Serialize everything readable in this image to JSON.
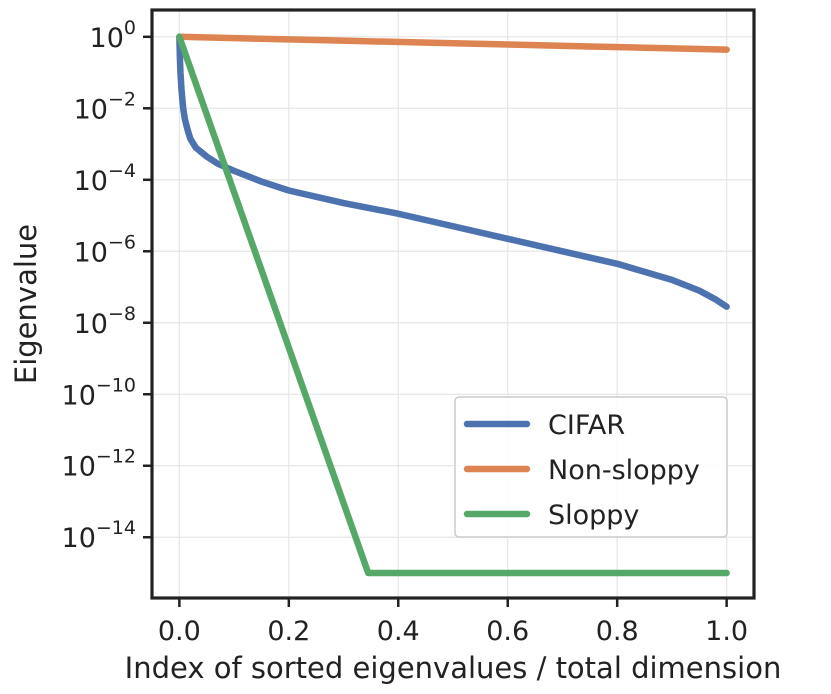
{
  "chart_data": {
    "type": "line",
    "title": "",
    "xlabel": "Index of sorted eigenvalues / total dimension",
    "ylabel": "Eigenvalue",
    "xlim": [
      -0.05,
      1.05
    ],
    "ylim_log10": [
      -15.7,
      0.75
    ],
    "yscale": "log",
    "grid": true,
    "legend_position": "lower-right",
    "x_ticks": [
      {
        "value": 0.0,
        "label": "0.0"
      },
      {
        "value": 0.2,
        "label": "0.2"
      },
      {
        "value": 0.4,
        "label": "0.4"
      },
      {
        "value": 0.6,
        "label": "0.6"
      },
      {
        "value": 0.8,
        "label": "0.8"
      },
      {
        "value": 1.0,
        "label": "1.0"
      }
    ],
    "y_ticks": [
      {
        "exp": 0,
        "base": "10",
        "power": "0"
      },
      {
        "exp": -2,
        "base": "10",
        "power": "−2"
      },
      {
        "exp": -4,
        "base": "10",
        "power": "−4"
      },
      {
        "exp": -6,
        "base": "10",
        "power": "−6"
      },
      {
        "exp": -8,
        "base": "10",
        "power": "−8"
      },
      {
        "exp": -10,
        "base": "10",
        "power": "−10"
      },
      {
        "exp": -12,
        "base": "10",
        "power": "−12"
      },
      {
        "exp": -14,
        "base": "10",
        "power": "−14"
      }
    ],
    "series": [
      {
        "name": "CIFAR",
        "color": "#4c72b0",
        "x": [
          0.0,
          0.001,
          0.002,
          0.004,
          0.007,
          0.01,
          0.015,
          0.02,
          0.03,
          0.05,
          0.07,
          0.1,
          0.15,
          0.2,
          0.3,
          0.4,
          0.5,
          0.6,
          0.7,
          0.8,
          0.9,
          0.95,
          0.98,
          1.0
        ],
        "log10_y": [
          0.0,
          -0.6,
          -1.0,
          -1.5,
          -2.0,
          -2.3,
          -2.6,
          -2.85,
          -3.1,
          -3.35,
          -3.55,
          -3.75,
          -4.05,
          -4.3,
          -4.65,
          -4.95,
          -5.3,
          -5.65,
          -6.0,
          -6.35,
          -6.8,
          -7.1,
          -7.35,
          -7.55
        ]
      },
      {
        "name": "Non-sloppy",
        "color": "#dd8452",
        "x": [
          0.0,
          0.25,
          0.5,
          0.75,
          1.0
        ],
        "log10_y": [
          0.0,
          -0.09,
          -0.18,
          -0.27,
          -0.36
        ]
      },
      {
        "name": "Sloppy",
        "color": "#55a868",
        "x": [
          0.0,
          0.345,
          1.0
        ],
        "log10_y": [
          0.0,
          -15.0,
          -15.0
        ]
      }
    ]
  }
}
